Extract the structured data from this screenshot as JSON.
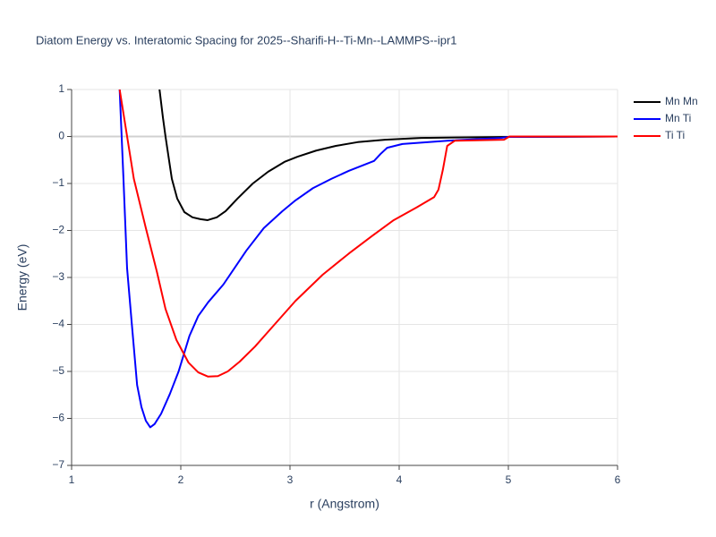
{
  "chart_data": {
    "type": "line",
    "title": "Diatom Energy vs. Interatomic Spacing for 2025--Sharifi-H--Ti-Mn--LAMMPS--ipr1",
    "x_label": "r (Angstrom)",
    "y_label": "Energy (eV)",
    "xlim": [
      1,
      6
    ],
    "xticks": [
      1,
      2,
      3,
      4,
      5,
      6
    ],
    "ylim": [
      -7,
      1
    ],
    "yticks": [
      {
        "value": -7,
        "label": "−7"
      },
      {
        "value": -6,
        "label": "−6"
      },
      {
        "value": -5,
        "label": "−5"
      },
      {
        "value": -4,
        "label": "−4"
      },
      {
        "value": -3,
        "label": "−3"
      },
      {
        "value": -2,
        "label": "−2"
      },
      {
        "value": -1,
        "label": "−1"
      },
      0,
      1
    ],
    "grid": true,
    "legend": "right",
    "series": [
      {
        "name": "Mn Mn",
        "color": "#000000",
        "x": [
          1.8,
          1.836,
          1.86,
          1.918,
          1.967,
          2.033,
          2.107,
          2.18,
          2.246,
          2.33,
          2.41,
          2.52,
          2.66,
          2.8,
          2.95,
          3.07,
          3.24,
          3.42,
          3.62,
          3.87,
          4.2,
          5.0,
          6.0
        ],
        "values": [
          1.1,
          0.41,
          0,
          -0.9,
          -1.32,
          -1.61,
          -1.72,
          -1.76,
          -1.78,
          -1.72,
          -1.59,
          -1.32,
          -1.0,
          -0.75,
          -0.54,
          -0.43,
          -0.3,
          -0.2,
          -0.12,
          -0.07,
          -0.03,
          -0.01,
          0
        ]
      },
      {
        "name": "Mn Ti",
        "color": "#0000ff",
        "x": [
          1.44,
          1.475,
          1.508,
          1.55,
          1.6,
          1.64,
          1.68,
          1.72,
          1.76,
          1.82,
          1.9,
          1.98,
          2.08,
          2.16,
          2.25,
          2.39,
          2.6,
          2.76,
          2.93,
          3.05,
          3.21,
          3.38,
          3.54,
          3.77,
          3.83,
          3.89,
          4.03,
          4.44,
          4.93,
          5.0,
          6.0
        ],
        "values": [
          1.0,
          -0.9,
          -2.8,
          -3.95,
          -5.29,
          -5.76,
          -6.05,
          -6.19,
          -6.12,
          -5.9,
          -5.48,
          -5.0,
          -4.24,
          -3.82,
          -3.53,
          -3.15,
          -2.43,
          -1.95,
          -1.59,
          -1.36,
          -1.1,
          -0.9,
          -0.73,
          -0.52,
          -0.37,
          -0.24,
          -0.16,
          -0.09,
          -0.03,
          -0.01,
          0
        ]
      },
      {
        "name": "Ti Ti",
        "color": "#ff0000",
        "x": [
          1.44,
          1.57,
          1.68,
          1.78,
          1.86,
          1.96,
          2.07,
          2.16,
          2.25,
          2.34,
          2.43,
          2.54,
          2.68,
          2.84,
          3.05,
          3.3,
          3.54,
          3.75,
          3.95,
          4.16,
          4.32,
          4.36,
          4.4,
          4.44,
          4.51,
          4.96,
          5.01,
          6.0
        ],
        "values": [
          1.0,
          -0.9,
          -1.95,
          -2.87,
          -3.67,
          -4.33,
          -4.81,
          -5.02,
          -5.11,
          -5.1,
          -5.0,
          -4.79,
          -4.47,
          -4.05,
          -3.5,
          -2.94,
          -2.49,
          -2.12,
          -1.78,
          -1.51,
          -1.29,
          -1.13,
          -0.71,
          -0.2,
          -0.09,
          -0.07,
          0,
          0
        ]
      }
    ]
  }
}
